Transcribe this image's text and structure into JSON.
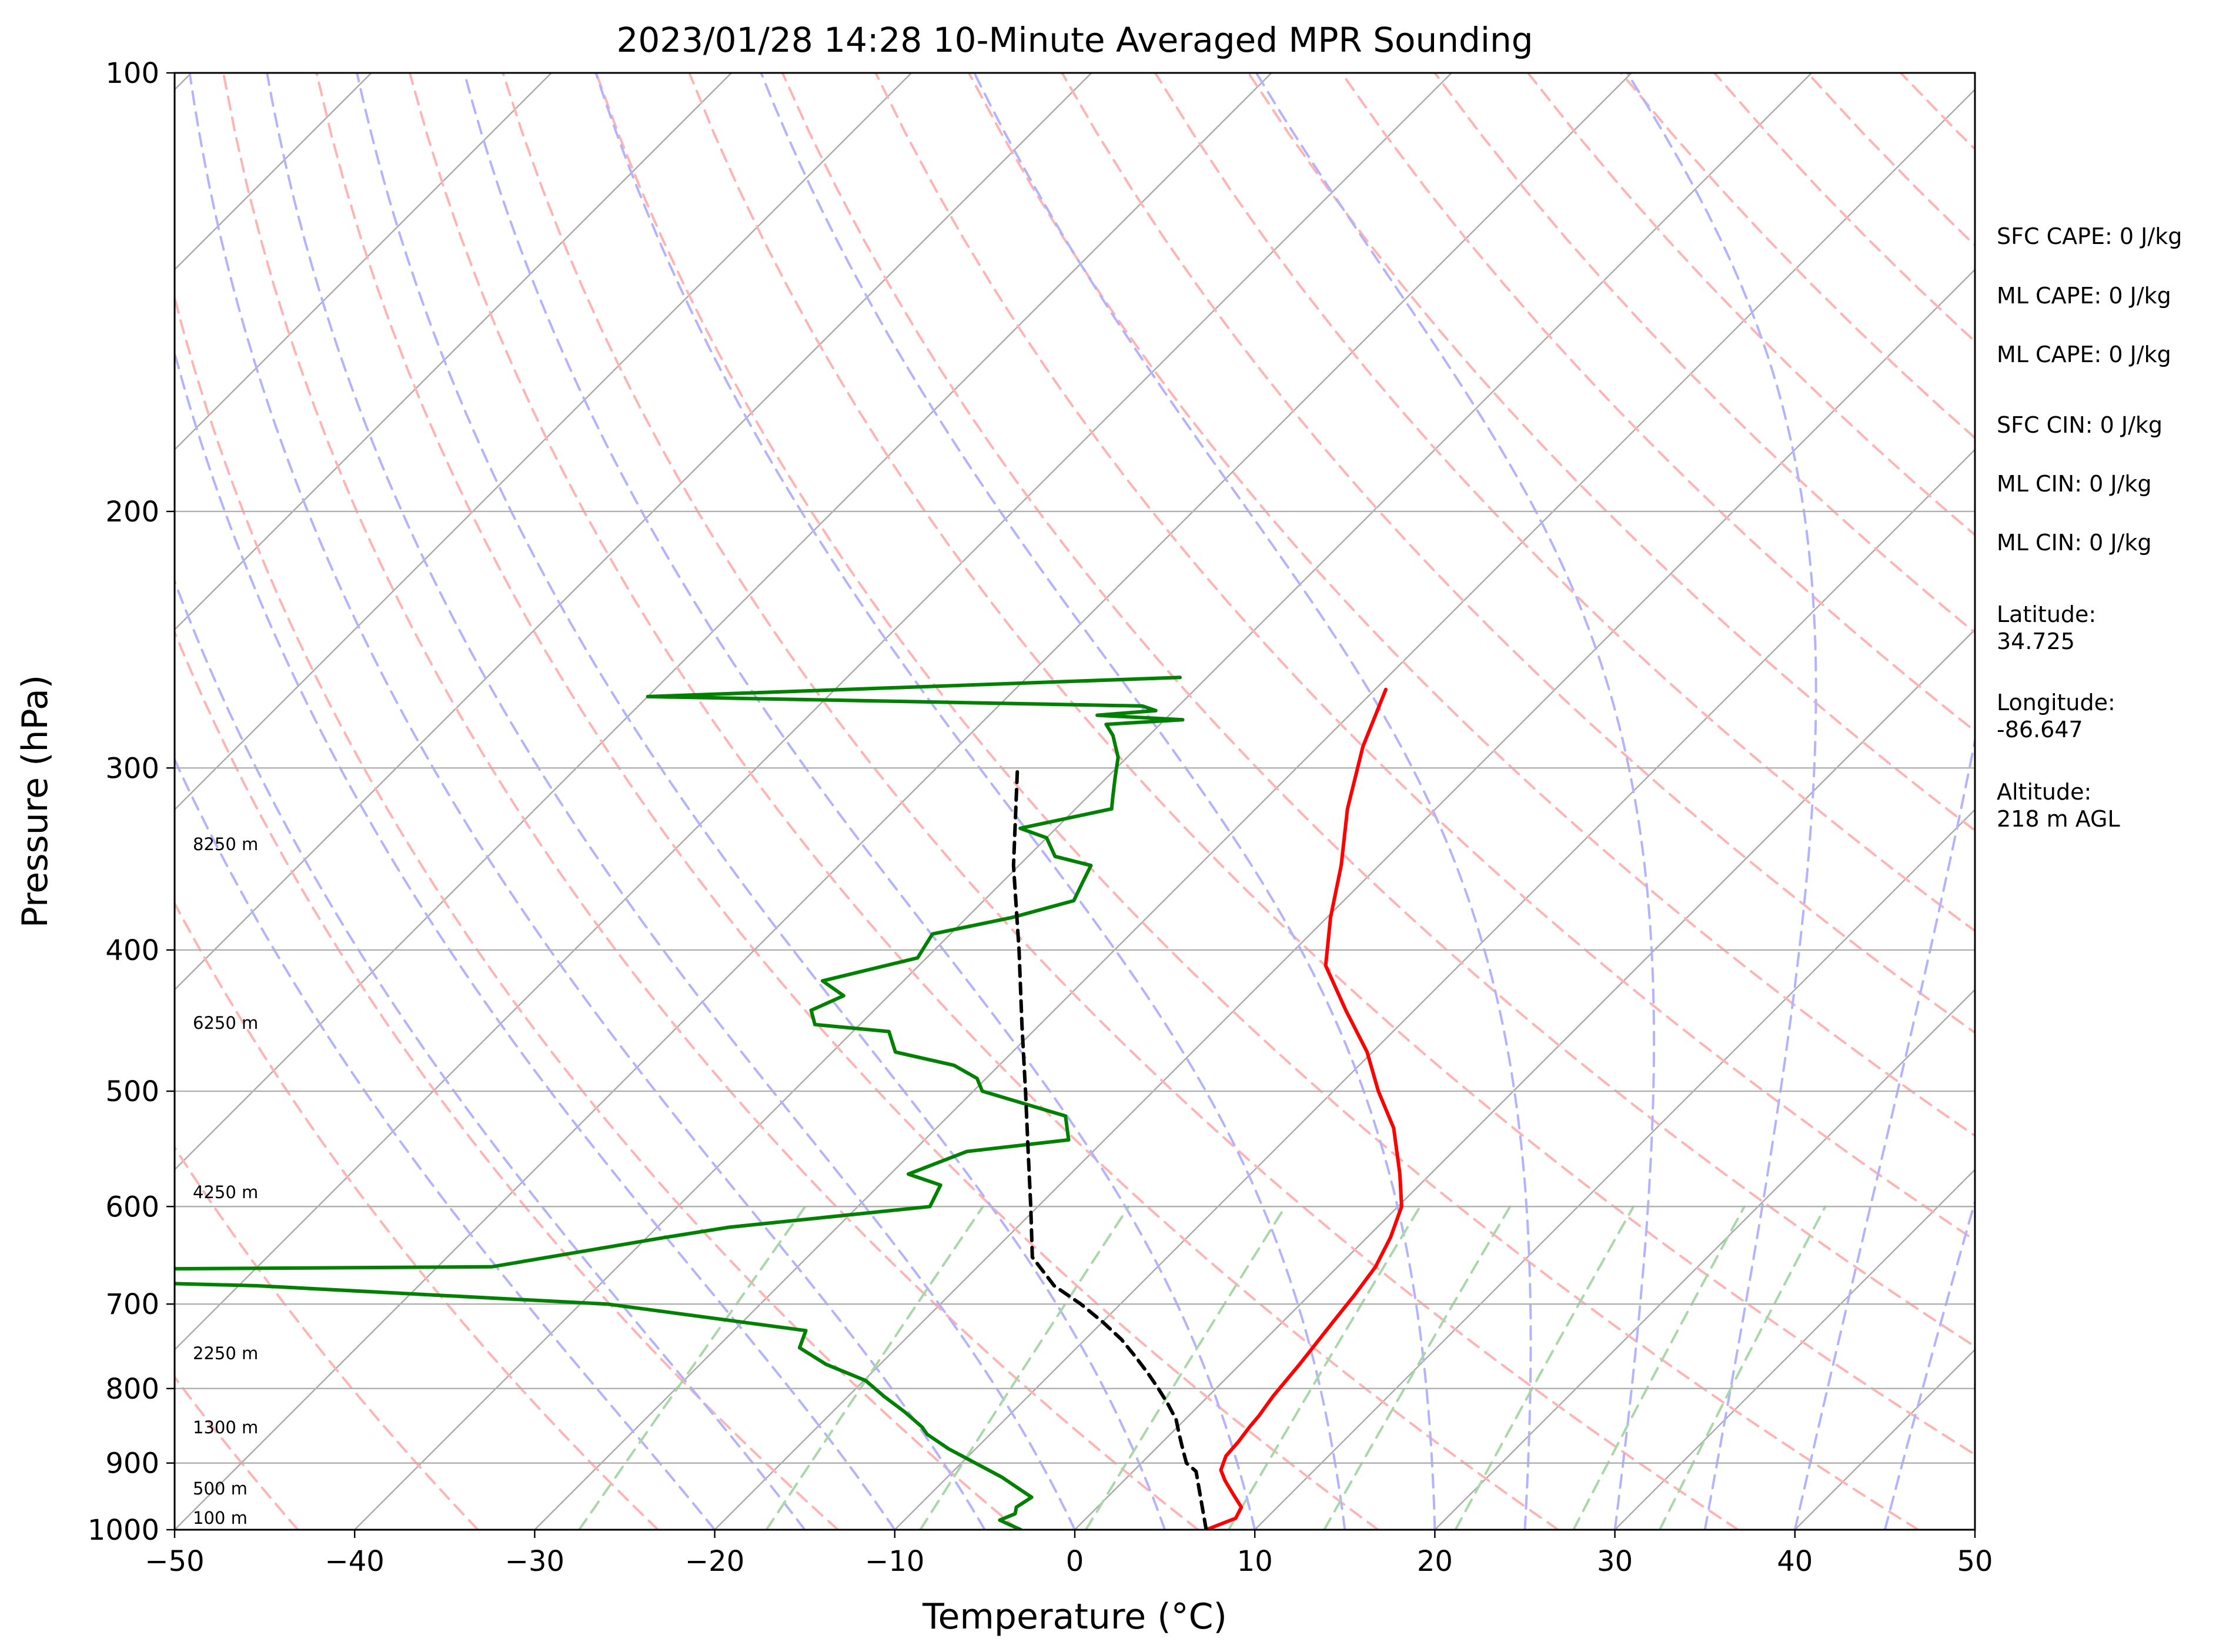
{
  "chart_data": {
    "type": "line",
    "subtype": "skew-T log-P sounding",
    "title": "2023/01/28 14:28 10-Minute Averaged MPR Sounding",
    "xlabel": "Temperature (°C)",
    "ylabel": "Pressure (hPa)",
    "xlim": [
      -50,
      50
    ],
    "ylim": [
      1000,
      100
    ],
    "y_scale": "log",
    "x_ticks": [
      "−50",
      "−40",
      "−30",
      "−20",
      "−10",
      "0",
      "10",
      "20",
      "30",
      "40",
      "50"
    ],
    "y_ticks": [
      "100",
      "200",
      "300",
      "400",
      "500",
      "600",
      "700",
      "800",
      "900",
      "1000"
    ],
    "grid": "isobars at 200–900 hPa",
    "colors": {
      "temperature": "#ff0000",
      "dewpoint": "#008000",
      "parcel": "#000000",
      "isotherms": "#a9a9a9",
      "dry_adiabats": "#ffb3b3",
      "moist_adiabats": "#b3b3ff",
      "mixing_ratio": "#a8d8a8"
    },
    "series": [
      {
        "key": "temperature",
        "x": [
          7.3,
          8.3,
          8.0,
          6.8,
          5.6,
          4.8,
          4.3,
          4.2,
          4.0,
          3.9,
          3.6,
          3.3,
          2.8,
          2.5,
          2.1,
          1.3,
          0.2,
          -1.7,
          -4.6,
          -7.5,
          -10.3,
          -13.8,
          -17.4,
          -19.8,
          -22.1,
          -24.9,
          -27.5,
          -29.4
        ],
        "y": [
          1000,
          982,
          965,
          945,
          925,
          910,
          890,
          870,
          850,
          835,
          810,
          770,
          720,
          690,
          660,
          630,
          600,
          570,
          530,
          500,
          470,
          440,
          410,
          380,
          350,
          320,
          290,
          265
        ]
      },
      {
        "key": "dewpoint",
        "x": [
          -3,
          -3.8,
          -4.7,
          -4.2,
          -4.5,
          -4.2,
          -7,
          -11.5,
          -13.5,
          -14.2,
          -16,
          -18,
          -19.9,
          -23,
          -25.4,
          -26,
          -38.5,
          -59,
          -90,
          -47,
          -39,
          -36,
          -26,
          -26.6,
          -29,
          -27,
          -22,
          -23.5,
          -29.5,
          -30.5,
          -32.5,
          -36.5,
          -38,
          -42.5,
          -43.5,
          -42.5,
          -44.5,
          -40.5,
          -41,
          -37.5,
          -35,
          -35.5,
          -36,
          -38.5,
          -40,
          -42,
          -38,
          -38.5,
          -39.5,
          -40.5,
          -42,
          -43,
          -39,
          -44,
          -41,
          -42,
          -56,
          -70,
          -41.5
        ],
        "y": [
          1000,
          993,
          985,
          975,
          965,
          950,
          920,
          880,
          860,
          850,
          830,
          810,
          790,
          770,
          750,
          730,
          700,
          680,
          665,
          660,
          630,
          620,
          600,
          580,
          570,
          550,
          540,
          520,
          500,
          490,
          480,
          470,
          455,
          450,
          440,
          430,
          420,
          405,
          390,
          380,
          370,
          360,
          350,
          345,
          335,
          330,
          320,
          315,
          305,
          295,
          285,
          280,
          278,
          276,
          274,
          272,
          270,
          268,
          260
        ]
      },
      {
        "key": "parcel",
        "x": [
          7.3,
          3.5,
          2.5,
          1.5,
          0.5,
          -0.5,
          -1.8,
          -3.2,
          -4.7,
          -6.3,
          -8.0,
          -10.0,
          -12.2,
          -14.7,
          -17.5,
          -20.4,
          -23.6,
          -27.1,
          -31.0,
          -35.3,
          -40.3,
          -45.5
        ],
        "y": [
          1000,
          912,
          900,
          880,
          860,
          840,
          820,
          800,
          780,
          760,
          740,
          720,
          700,
          680,
          650,
          600,
          550,
          500,
          450,
          400,
          350,
          300
        ]
      }
    ],
    "height_labels": [
      "8250 m",
      "6250 m",
      "4250 m",
      "2250 m",
      "1300 m",
      "500 m",
      "100 m"
    ],
    "annotations": [
      "SFC CAPE: 0 J/kg",
      "ML CAPE: 0 J/kg",
      "ML CAPE: 0 J/kg",
      "SFC CIN: 0 J/kg",
      "ML CIN: 0 J/kg",
      "ML CIN: 0 J/kg",
      "Latitude:",
      "34.725",
      "Longitude:",
      "-86.647",
      "Altitude:",
      "218 m AGL"
    ]
  }
}
